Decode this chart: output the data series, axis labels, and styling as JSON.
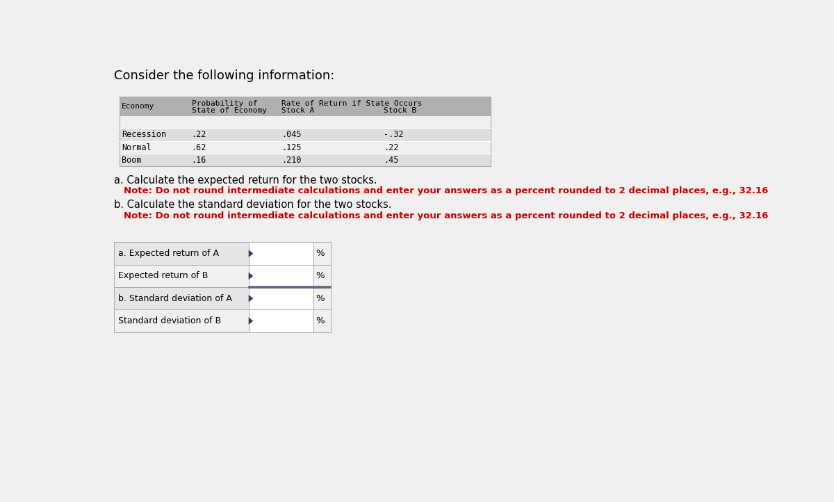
{
  "title": "Consider the following information:",
  "bg_color": "#f2f0ee",
  "header_bg": "#b0b0b0",
  "row_bg_light": "#e0dedd",
  "row_bg_white": "#f2f0ee",
  "rows": [
    [
      "Recession",
      ".22",
      ".045",
      "-.32"
    ],
    [
      "Normal",
      ".62",
      ".125",
      ".22"
    ],
    [
      "Boom",
      ".16",
      ".210",
      ".45"
    ]
  ],
  "note_a": "a. Calculate the expected return for the two stocks.",
  "note_a_sub": "Note: Do not round intermediate calculations and enter your answers as a percent rounded to 2 decimal places, e.g., 32.16",
  "note_b": "b. Calculate the standard deviation for the two stocks.",
  "note_b_sub": "Note: Do not round intermediate calculations and enter your answers as a percent rounded to 2 decimal places, e.g., 32.16",
  "answer_labels": [
    "a. Expected return of A",
    "Expected return of B",
    "b. Standard deviation of A",
    "Standard deviation of B"
  ],
  "ans_label_bgs": [
    "#e8e6e4",
    "#f2f0ee",
    "#e8e6e4",
    "#f2f0ee"
  ],
  "ans_input_bg": "#ffffff",
  "ans_pct_bg": "#f2f0ee",
  "tri_color": "#2a3a6a",
  "font_mono": "DejaVu Sans Mono",
  "font_sans": "DejaVu Sans"
}
